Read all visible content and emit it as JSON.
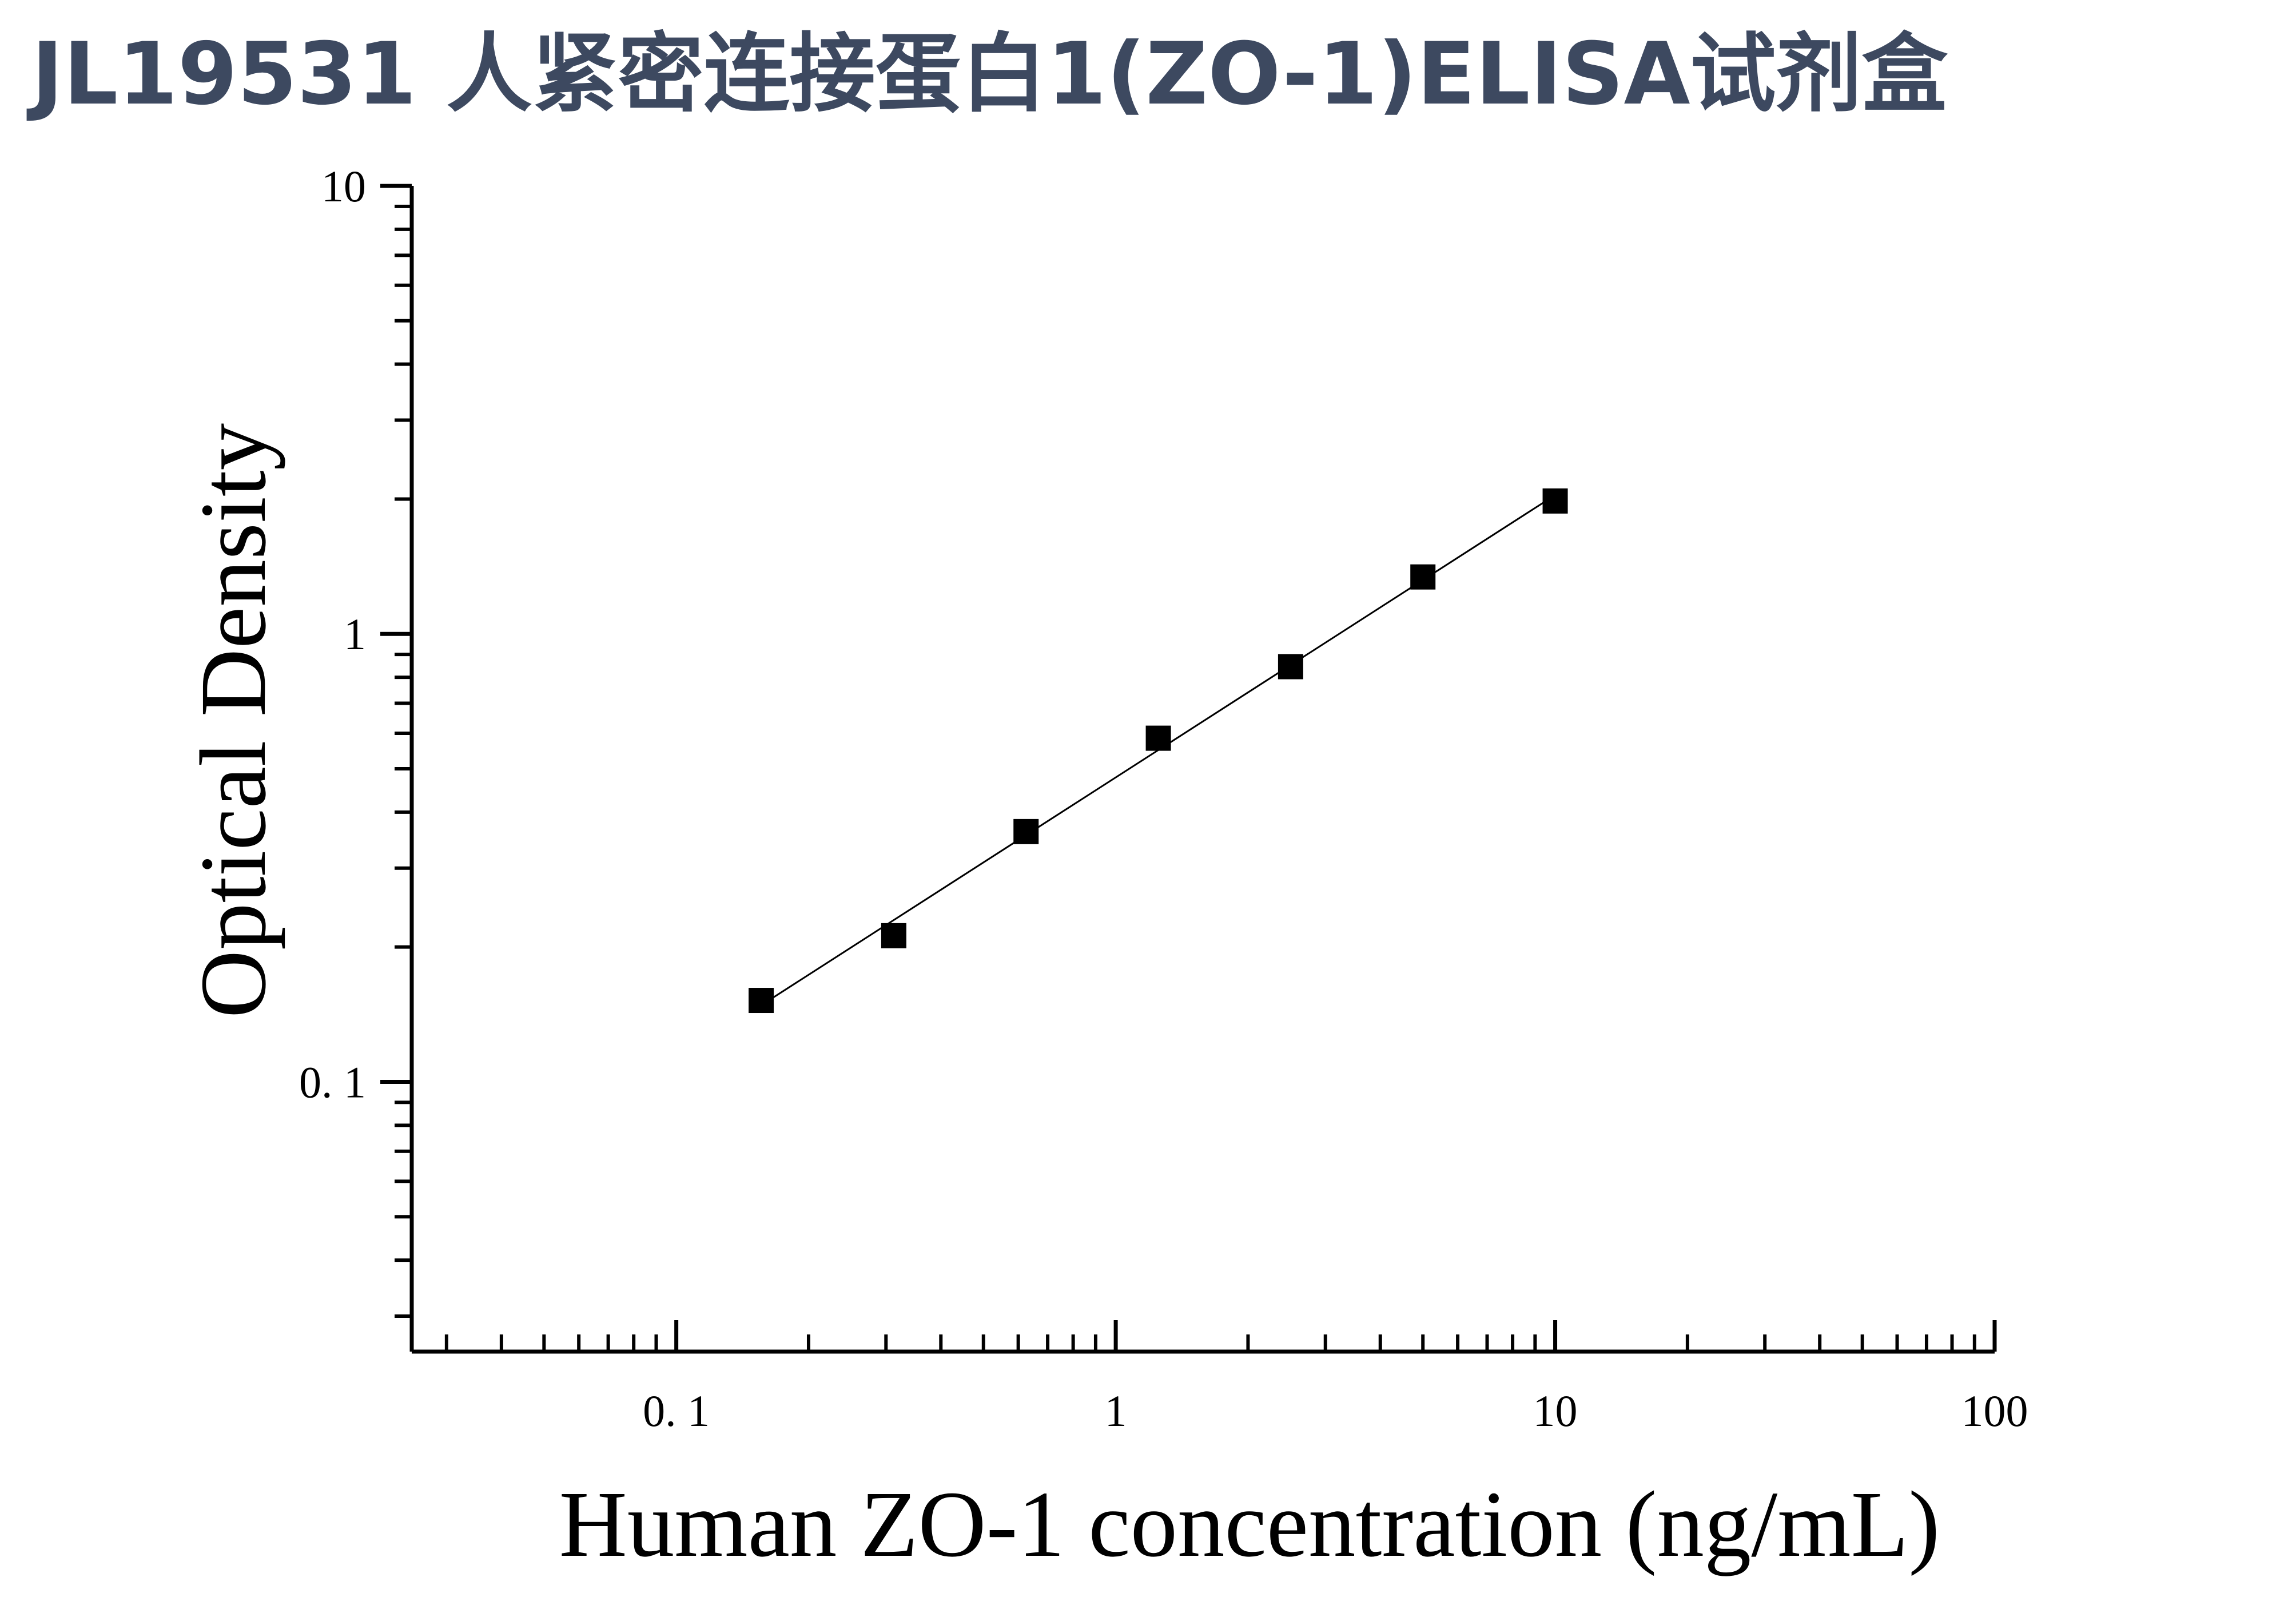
{
  "page_title": "JL19531 人紧密连接蛋白1(ZO-1)ELISA试剂盒",
  "chart_data": {
    "type": "scatter",
    "title": "",
    "xlabel": "Human ZO-1 concentration (ng/mL)",
    "ylabel": "Optical Density",
    "x_scale": "log",
    "y_scale": "log",
    "xlim": [
      0.025,
      100
    ],
    "ylim": [
      0.025,
      10
    ],
    "x_ticks": [
      {
        "value": 0.1,
        "label": "0. 1"
      },
      {
        "value": 1,
        "label": "1"
      },
      {
        "value": 10,
        "label": "10"
      },
      {
        "value": 100,
        "label": "100"
      }
    ],
    "y_ticks": [
      {
        "value": 0.1,
        "label": "0. 1"
      },
      {
        "value": 1,
        "label": "1"
      },
      {
        "value": 10,
        "label": "10"
      }
    ],
    "grid": false,
    "legend": "none",
    "series": [
      {
        "marker": "square",
        "color": "#000000",
        "fit_line": true,
        "x": [
          0.156,
          0.3125,
          0.625,
          1.25,
          2.5,
          5,
          10
        ],
        "y": [
          0.152,
          0.212,
          0.362,
          0.585,
          0.845,
          1.34,
          1.98
        ]
      }
    ]
  }
}
